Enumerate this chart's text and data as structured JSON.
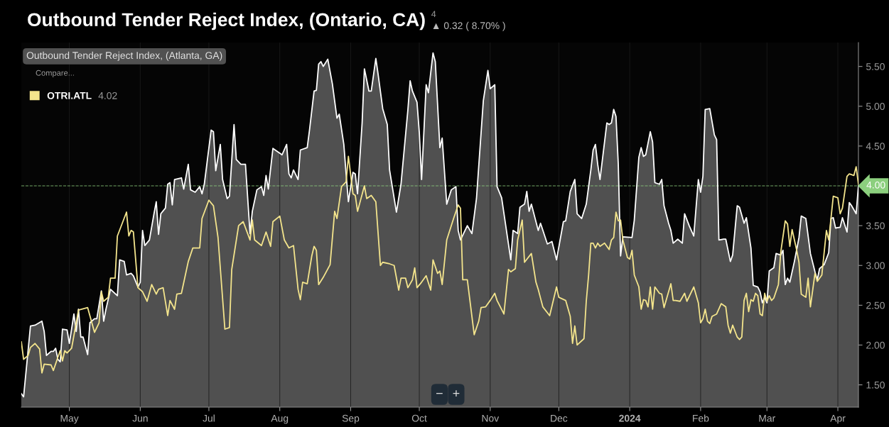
{
  "chart_data": {
    "type": "line",
    "title": "Outbound Tender Reject Index, (Ontario, CA)",
    "annotations": [
      "Outbound Tender Reject Index, (Atlanta, GA)",
      "Compare...",
      "4.02",
      "4",
      "▲ 0.32 ( 8.70% )",
      "−",
      "+"
    ],
    "xlim": [
      "2023-04-10",
      "2024-04-10"
    ],
    "xticks": [
      {
        "value": "2023-05-01",
        "label": "May"
      },
      {
        "value": "2023-06-01",
        "label": "Jun"
      },
      {
        "value": "2023-07-01",
        "label": "Jul"
      },
      {
        "value": "2023-08-01",
        "label": "Aug"
      },
      {
        "value": "2023-09-01",
        "label": "Sep"
      },
      {
        "value": "2023-10-01",
        "label": "Oct"
      },
      {
        "value": "2023-11-01",
        "label": "Nov"
      },
      {
        "value": "2023-12-01",
        "label": "Dec"
      },
      {
        "value": "2024-01-01",
        "label": "2024"
      },
      {
        "value": "2024-02-01",
        "label": "Feb"
      },
      {
        "value": "2024-03-01",
        "label": "Mar"
      },
      {
        "value": "2024-04-01",
        "label": "Apr"
      }
    ],
    "ylim": [
      1.22,
      5.8
    ],
    "yticks": [
      {
        "value": 1.5,
        "label": "1.50"
      },
      {
        "value": 2.0,
        "label": "2.00"
      },
      {
        "value": 2.5,
        "label": "2.50"
      },
      {
        "value": 3.0,
        "label": "3.00"
      },
      {
        "value": 3.5,
        "label": "3.50"
      },
      {
        "value": 4.0,
        "label": null
      },
      {
        "value": 4.5,
        "label": "4.50"
      },
      {
        "value": 5.0,
        "label": "5.00"
      },
      {
        "value": 5.5,
        "label": "5.50"
      }
    ],
    "grid": "x",
    "legend": "top left",
    "ref_lines": [
      {
        "axis": "y",
        "value": 4.0,
        "label": "4.00",
        "color": "#8ccf7e",
        "line_style": "dashed"
      }
    ],
    "series": [
      {
        "type": "area",
        "color": "#ffffff",
        "x": [
          "2023-04-10",
          "2023-04-11",
          "2023-04-14",
          "2023-04-16",
          "2023-04-19",
          "2023-04-20",
          "2023-04-21",
          "2023-04-23",
          "2023-04-24",
          "2023-04-25",
          "2023-04-26",
          "2023-04-27",
          "2023-04-28",
          "2023-04-30",
          "2023-05-01",
          "2023-05-03",
          "2023-05-04",
          "2023-05-05",
          "2023-05-06",
          "2023-05-07",
          "2023-05-09",
          "2023-05-10",
          "2023-05-12",
          "2023-05-13",
          "2023-05-15",
          "2023-05-16",
          "2023-05-17",
          "2023-05-19",
          "2023-05-22",
          "2023-05-23",
          "2023-05-25",
          "2023-05-26",
          "2023-05-28",
          "2023-05-29",
          "2023-05-31",
          "2023-06-01",
          "2023-06-02",
          "2023-06-03",
          "2023-06-05",
          "2023-06-07",
          "2023-06-08",
          "2023-06-09",
          "2023-06-10",
          "2023-06-12",
          "2023-06-13",
          "2023-06-14",
          "2023-06-15",
          "2023-06-16",
          "2023-06-19",
          "2023-06-20",
          "2023-06-22",
          "2023-06-23",
          "2023-06-25",
          "2023-06-27",
          "2023-06-28",
          "2023-06-29",
          "2023-07-02",
          "2023-07-03",
          "2023-07-04",
          "2023-07-06",
          "2023-07-07",
          "2023-07-09",
          "2023-07-10",
          "2023-07-12",
          "2023-07-13",
          "2023-07-15",
          "2023-07-17",
          "2023-07-19",
          "2023-07-20",
          "2023-07-22",
          "2023-07-24",
          "2023-07-25",
          "2023-07-26",
          "2023-07-27",
          "2023-07-29",
          "2023-07-30",
          "2023-08-02",
          "2023-08-04",
          "2023-08-05",
          "2023-08-06",
          "2023-08-07",
          "2023-08-09",
          "2023-08-10",
          "2023-08-13",
          "2023-08-14",
          "2023-08-16",
          "2023-08-17",
          "2023-08-18",
          "2023-08-19",
          "2023-08-20",
          "2023-08-22",
          "2023-08-24",
          "2023-08-26",
          "2023-08-27",
          "2023-08-29",
          "2023-08-30",
          "2023-08-31",
          "2023-09-02",
          "2023-09-03",
          "2023-09-04",
          "2023-09-06",
          "2023-09-07",
          "2023-09-09",
          "2023-09-10",
          "2023-09-12",
          "2023-09-13",
          "2023-09-15",
          "2023-09-17",
          "2023-09-18",
          "2023-09-21",
          "2023-09-23",
          "2023-09-26",
          "2023-09-27",
          "2023-09-28",
          "2023-09-30",
          "2023-10-01",
          "2023-10-02",
          "2023-10-04",
          "2023-10-05",
          "2023-10-07",
          "2023-10-08",
          "2023-10-10",
          "2023-10-11",
          "2023-10-13",
          "2023-10-15",
          "2023-10-17",
          "2023-10-18",
          "2023-10-19",
          "2023-10-22",
          "2023-10-24",
          "2023-10-26",
          "2023-10-29",
          "2023-10-31",
          "2023-11-01",
          "2023-11-03",
          "2023-11-04",
          "2023-11-06",
          "2023-11-10",
          "2023-11-11",
          "2023-11-13",
          "2023-11-14",
          "2023-11-16",
          "2023-11-17",
          "2023-11-18",
          "2023-11-19",
          "2023-11-22",
          "2023-11-23",
          "2023-11-26",
          "2023-11-28",
          "2023-11-30",
          "2023-12-03",
          "2023-12-04",
          "2023-12-06",
          "2023-12-08",
          "2023-12-09",
          "2023-12-11",
          "2023-12-13",
          "2023-12-15",
          "2023-12-16",
          "2023-12-17",
          "2023-12-18",
          "2023-12-19",
          "2023-12-22",
          "2023-12-23",
          "2023-12-24",
          "2023-12-25",
          "2023-12-26",
          "2023-12-27",
          "2023-12-28",
          "2023-12-29",
          "2024-01-02",
          "2024-01-03",
          "2024-01-05",
          "2024-01-06",
          "2024-01-07",
          "2024-01-08",
          "2024-01-10",
          "2024-01-11",
          "2024-01-12",
          "2024-01-14",
          "2024-01-15",
          "2024-01-16",
          "2024-01-18",
          "2024-01-19",
          "2024-01-20",
          "2024-01-22",
          "2024-01-24",
          "2024-01-25",
          "2024-01-27",
          "2024-01-29",
          "2024-01-31",
          "2024-02-01",
          "2024-02-02",
          "2024-02-03",
          "2024-02-05",
          "2024-02-07",
          "2024-02-08",
          "2024-02-09",
          "2024-02-11",
          "2024-02-12",
          "2024-02-14",
          "2024-02-15",
          "2024-02-17",
          "2024-02-18",
          "2024-02-20",
          "2024-02-21",
          "2024-02-23",
          "2024-02-24",
          "2024-02-26",
          "2024-02-27",
          "2024-02-28",
          "2024-02-29",
          "2024-03-01",
          "2024-03-02",
          "2024-03-04",
          "2024-03-05",
          "2024-03-07",
          "2024-03-08",
          "2024-03-09",
          "2024-03-10",
          "2024-03-11",
          "2024-03-13",
          "2024-03-15",
          "2024-03-16",
          "2024-03-18",
          "2024-03-19",
          "2024-03-20",
          "2024-03-22",
          "2024-03-23",
          "2024-03-24",
          "2024-03-26",
          "2024-03-28",
          "2024-03-29",
          "2024-03-30",
          "2024-03-31",
          "2024-04-02",
          "2024-04-03",
          "2024-04-05",
          "2024-04-06",
          "2024-04-07",
          "2024-04-09",
          "2024-04-10"
        ],
        "values": [
          1.39,
          1.35,
          2.24,
          2.25,
          2.3,
          2.17,
          1.87,
          1.92,
          1.92,
          1.96,
          1.82,
          1.79,
          2.2,
          2.19,
          2.02,
          2.39,
          2.17,
          2.45,
          2.1,
          2.1,
          1.88,
          2.28,
          2.33,
          2.33,
          2.68,
          2.3,
          2.45,
          2.7,
          2.62,
          3.07,
          3.05,
          2.88,
          2.9,
          2.87,
          2.73,
          2.79,
          3.44,
          3.25,
          3.32,
          3.65,
          3.8,
          3.39,
          3.65,
          3.72,
          4.02,
          4.04,
          3.76,
          4.08,
          4.1,
          3.96,
          4.27,
          3.95,
          3.92,
          3.99,
          3.9,
          4.02,
          4.7,
          4.68,
          4.19,
          4.52,
          4.08,
          3.84,
          3.87,
          4.77,
          4.33,
          4.27,
          4.27,
          3.4,
          3.68,
          3.95,
          3.99,
          3.88,
          4.13,
          3.96,
          4.47,
          4.45,
          4.39,
          4.52,
          4.15,
          4.1,
          4.2,
          4.08,
          4.45,
          4.48,
          4.7,
          5.19,
          5.2,
          5.53,
          5.56,
          5.5,
          5.59,
          5.28,
          4.85,
          4.9,
          4.52,
          4.15,
          3.8,
          4.17,
          4.15,
          3.9,
          4.79,
          5.47,
          5.19,
          5.19,
          5.6,
          5.4,
          4.97,
          4.77,
          4.2,
          3.67,
          4.02,
          4.95,
          5.32,
          5.19,
          5.05,
          4.67,
          4.08,
          5.27,
          5.17,
          5.67,
          5.56,
          4.48,
          4.6,
          3.77,
          3.95,
          3.99,
          3.44,
          3.32,
          3.5,
          3.4,
          3.84,
          5.07,
          5.45,
          5.22,
          5.27,
          3.99,
          3.85,
          3.07,
          3.44,
          3.4,
          3.73,
          3.77,
          3.93,
          3.68,
          3.77,
          3.44,
          3.53,
          3.27,
          3.3,
          3.07,
          3.55,
          3.56,
          3.93,
          4.08,
          3.65,
          3.59,
          3.77,
          4.2,
          4.45,
          4.52,
          4.27,
          4.08,
          4.79,
          4.77,
          4.79,
          4.96,
          4.87,
          4.27,
          3.12,
          3.36,
          3.35,
          3.57,
          4.36,
          4.48,
          4.37,
          4.39,
          4.68,
          4.55,
          4.04,
          4.02,
          4.08,
          3.75,
          3.53,
          3.44,
          3.28,
          3.33,
          3.28,
          3.65,
          3.5,
          3.37,
          4.08,
          3.92,
          4.12,
          4.96,
          4.97,
          4.64,
          4.58,
          3.32,
          3.33,
          3.33,
          3.05,
          3.13,
          3.75,
          3.73,
          3.53,
          3.6,
          3.22,
          2.75,
          2.73,
          2.67,
          2.53,
          2.6,
          2.53,
          2.93,
          2.97,
          3.15,
          3.13,
          3.19,
          2.76,
          2.84,
          2.79,
          3.05,
          3.35,
          3.62,
          3.59,
          3.37,
          3.15,
          2.92,
          2.82,
          2.96,
          3.01,
          3.16,
          3.59,
          3.6,
          3.47,
          3.48,
          3.6,
          3.42,
          3.79,
          3.75,
          3.65,
          4.0
        ]
      },
      {
        "name": "OTRI.ATL",
        "color": "#f3e48c",
        "x": [
          "2023-04-10",
          "2023-04-11",
          "2023-04-13",
          "2023-04-14",
          "2023-04-16",
          "2023-04-18",
          "2023-04-19",
          "2023-04-20",
          "2023-04-23",
          "2023-04-24",
          "2023-04-27",
          "2023-04-28",
          "2023-04-29",
          "2023-04-30",
          "2023-05-02",
          "2023-05-05",
          "2023-05-09",
          "2023-05-12",
          "2023-05-14",
          "2023-05-15",
          "2023-05-16",
          "2023-05-18",
          "2023-05-19",
          "2023-05-21",
          "2023-05-22",
          "2023-05-26",
          "2023-05-27",
          "2023-05-28",
          "2023-05-29",
          "2023-05-31",
          "2023-06-02",
          "2023-06-04",
          "2023-06-06",
          "2023-06-08",
          "2023-06-09",
          "2023-06-11",
          "2023-06-13",
          "2023-06-14",
          "2023-06-16",
          "2023-06-17",
          "2023-06-19",
          "2023-06-22",
          "2023-06-24",
          "2023-06-27",
          "2023-06-28",
          "2023-07-01",
          "2023-07-03",
          "2023-07-05",
          "2023-07-08",
          "2023-07-10",
          "2023-07-11",
          "2023-07-14",
          "2023-07-16",
          "2023-07-19",
          "2023-07-20",
          "2023-07-21",
          "2023-07-24",
          "2023-07-26",
          "2023-07-28",
          "2023-07-29",
          "2023-08-01",
          "2023-08-03",
          "2023-08-05",
          "2023-08-07",
          "2023-08-09",
          "2023-08-10",
          "2023-08-11",
          "2023-08-13",
          "2023-08-15",
          "2023-08-16",
          "2023-08-17",
          "2023-08-18",
          "2023-08-20",
          "2023-08-23",
          "2023-08-25",
          "2023-08-26",
          "2023-08-28",
          "2023-08-30",
          "2023-08-31",
          "2023-09-02",
          "2023-09-03",
          "2023-09-04",
          "2023-09-07",
          "2023-09-08",
          "2023-09-10",
          "2023-09-12",
          "2023-09-14",
          "2023-09-15",
          "2023-09-18",
          "2023-09-20",
          "2023-09-22",
          "2023-09-23",
          "2023-09-25",
          "2023-09-26",
          "2023-09-28",
          "2023-09-29",
          "2023-09-30",
          "2023-10-02",
          "2023-10-04",
          "2023-10-06",
          "2023-10-07",
          "2023-10-09",
          "2023-10-10",
          "2023-10-11",
          "2023-10-13",
          "2023-10-16",
          "2023-10-18",
          "2023-10-19",
          "2023-10-20",
          "2023-10-22",
          "2023-10-25",
          "2023-10-27",
          "2023-10-28",
          "2023-10-30",
          "2023-11-01",
          "2023-11-03",
          "2023-11-04",
          "2023-11-07",
          "2023-11-09",
          "2023-11-10",
          "2023-11-12",
          "2023-11-13",
          "2023-11-15",
          "2023-11-16",
          "2023-11-19",
          "2023-11-21",
          "2023-11-22",
          "2023-11-24",
          "2023-11-27",
          "2023-11-30",
          "2023-12-01",
          "2023-12-04",
          "2023-12-06",
          "2023-12-07",
          "2023-12-08",
          "2023-12-09",
          "2023-12-12",
          "2023-12-13",
          "2023-12-14",
          "2023-12-15",
          "2023-12-16",
          "2023-12-17",
          "2023-12-18",
          "2023-12-19",
          "2023-12-21",
          "2023-12-23",
          "2023-12-24",
          "2023-12-25",
          "2023-12-26",
          "2023-12-27",
          "2023-12-28",
          "2023-12-29",
          "2023-12-31",
          "2024-01-01",
          "2024-01-02",
          "2024-01-03",
          "2024-01-05",
          "2024-01-06",
          "2024-01-07",
          "2024-01-08",
          "2024-01-09",
          "2024-01-10",
          "2024-01-11",
          "2024-01-12",
          "2024-01-14",
          "2024-01-15",
          "2024-01-16",
          "2024-01-19",
          "2024-01-20",
          "2024-01-21",
          "2024-01-23",
          "2024-01-25",
          "2024-01-26",
          "2024-01-29",
          "2024-01-31",
          "2024-02-01",
          "2024-02-02",
          "2024-02-03",
          "2024-02-04",
          "2024-02-05",
          "2024-02-06",
          "2024-02-08",
          "2024-02-10",
          "2024-02-12",
          "2024-02-13",
          "2024-02-14",
          "2024-02-15",
          "2024-02-17",
          "2024-02-18",
          "2024-02-19",
          "2024-02-20",
          "2024-02-21",
          "2024-02-22",
          "2024-02-23",
          "2024-02-24",
          "2024-02-25",
          "2024-02-26",
          "2024-02-27",
          "2024-02-28",
          "2024-02-29",
          "2024-03-01",
          "2024-03-02",
          "2024-03-03",
          "2024-03-04",
          "2024-03-06",
          "2024-03-07",
          "2024-03-09",
          "2024-03-10",
          "2024-03-11",
          "2024-03-12",
          "2024-03-14",
          "2024-03-15",
          "2024-03-16",
          "2024-03-18",
          "2024-03-19",
          "2024-03-20",
          "2024-03-22",
          "2024-03-23",
          "2024-03-25",
          "2024-03-27",
          "2024-03-28",
          "2024-03-30",
          "2024-04-01",
          "2024-04-02",
          "2024-04-03",
          "2024-04-05",
          "2024-04-06",
          "2024-04-08",
          "2024-04-09",
          "2024-04-10"
        ],
        "values": [
          2.04,
          1.82,
          1.87,
          1.97,
          2.02,
          1.95,
          1.65,
          1.76,
          1.75,
          1.68,
          1.93,
          1.8,
          1.93,
          1.9,
          1.96,
          2.44,
          2.47,
          2.16,
          2.28,
          2.67,
          2.55,
          2.6,
          2.84,
          2.84,
          3.37,
          3.67,
          3.37,
          3.44,
          3.42,
          2.72,
          2.67,
          2.55,
          2.76,
          2.64,
          2.7,
          2.72,
          2.37,
          2.56,
          2.45,
          2.64,
          2.65,
          3.05,
          3.22,
          3.22,
          3.59,
          3.82,
          3.75,
          3.35,
          2.2,
          2.22,
          2.95,
          3.5,
          3.55,
          3.32,
          3.57,
          3.32,
          3.25,
          3.42,
          3.24,
          3.55,
          3.62,
          3.32,
          3.22,
          3.25,
          2.7,
          2.57,
          2.79,
          2.77,
          3.12,
          3.24,
          3.19,
          2.76,
          2.85,
          3.01,
          3.68,
          3.59,
          3.99,
          4.05,
          4.37,
          3.9,
          3.88,
          3.68,
          4.0,
          3.84,
          3.88,
          3.8,
          3.0,
          3.04,
          3.02,
          3.0,
          2.69,
          2.84,
          2.84,
          2.72,
          2.82,
          2.97,
          2.72,
          2.79,
          2.87,
          2.69,
          3.07,
          2.9,
          2.93,
          2.76,
          3.32,
          3.59,
          3.76,
          3.72,
          2.82,
          2.82,
          2.13,
          2.3,
          2.47,
          2.48,
          2.56,
          2.65,
          2.56,
          2.39,
          2.95,
          2.92,
          2.96,
          3.32,
          3.57,
          3.04,
          3.15,
          2.79,
          2.7,
          2.48,
          2.37,
          2.73,
          2.6,
          2.56,
          2.36,
          2.02,
          2.24,
          2.0,
          2.08,
          2.55,
          2.87,
          3.28,
          3.28,
          3.22,
          3.28,
          3.24,
          3.28,
          3.2,
          3.32,
          3.35,
          3.67,
          3.56,
          3.57,
          3.32,
          3.1,
          3.08,
          3.19,
          2.88,
          2.73,
          2.45,
          2.57,
          2.56,
          2.48,
          2.73,
          2.45,
          2.73,
          2.65,
          2.64,
          2.47,
          2.77,
          2.56,
          2.56,
          2.55,
          2.65,
          2.55,
          2.73,
          2.53,
          2.28,
          2.33,
          2.45,
          2.3,
          2.27,
          2.36,
          2.39,
          2.52,
          2.48,
          2.25,
          2.15,
          2.25,
          2.1,
          2.07,
          2.1,
          2.56,
          2.65,
          2.42,
          2.57,
          2.55,
          2.65,
          2.62,
          2.39,
          2.37,
          2.65,
          2.55,
          2.62,
          2.56,
          2.59,
          2.76,
          3.16,
          3.56,
          3.52,
          3.24,
          3.45,
          3.19,
          3.04,
          2.64,
          2.6,
          2.84,
          2.48,
          2.9,
          2.8,
          2.88,
          3.44,
          3.32,
          3.87,
          3.85,
          3.65,
          3.72,
          4.12,
          4.15,
          4.13,
          4.24,
          4.02
        ]
      }
    ]
  }
}
